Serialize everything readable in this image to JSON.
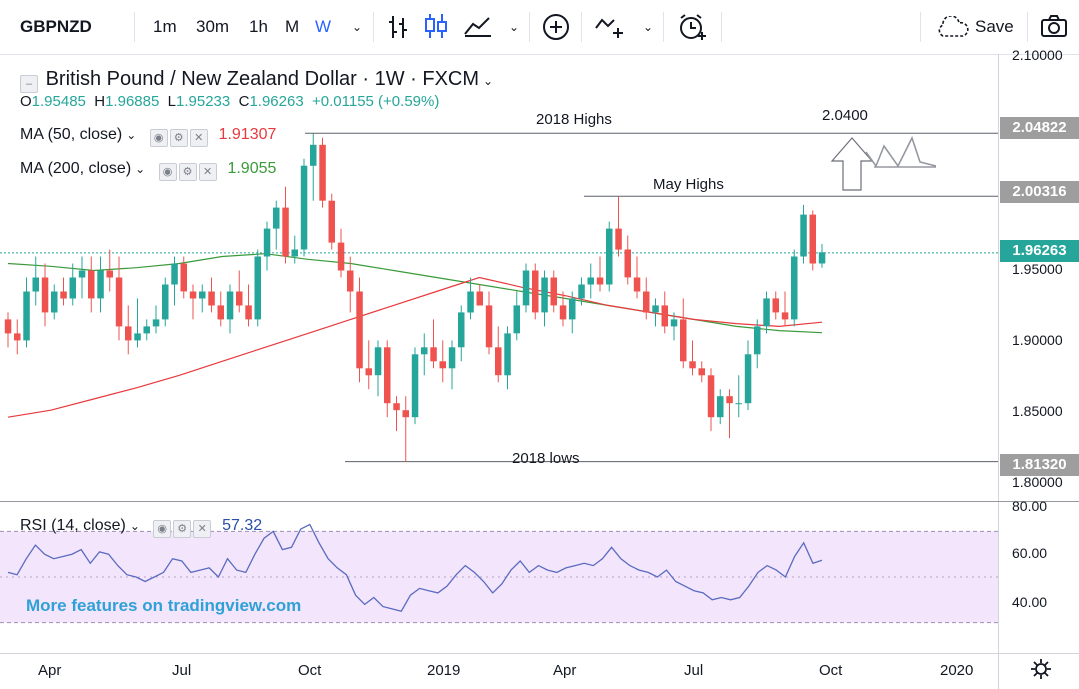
{
  "toolbar": {
    "symbol": "GBPNZD",
    "intervals": [
      "1m",
      "30m",
      "1h",
      "M",
      "W"
    ],
    "active_interval": "W",
    "save_label": "Save"
  },
  "header": {
    "title": "British Pound / New Zealand Dollar · 1W · FXCM",
    "ohlc": {
      "o_key": "O",
      "o": "1.95485",
      "h_key": "H",
      "h": "1.96885",
      "l_key": "L",
      "l": "1.95233",
      "c_key": "C",
      "c": "1.96263",
      "change": "+0.01155 (+0.59%)"
    }
  },
  "indicators": {
    "ma50": {
      "label": "MA (50, close)",
      "value": "1.91307",
      "color": "#e8393c"
    },
    "ma200": {
      "label": "MA (200, close)",
      "value": "1.9055",
      "color": "#3a9a3a"
    },
    "rsi": {
      "label": "RSI (14, close)",
      "value": "57.32",
      "color": "#5a6bbf"
    }
  },
  "annotations": {
    "highs_2018": "2018 Highs",
    "may_highs": "May Highs",
    "lows_2018": "2018 lows",
    "target": "2.0400"
  },
  "price_tags": {
    "highs_2018": "2.04822",
    "may_highs": "2.00316",
    "current": "1.96263",
    "lows_2018": "1.81320"
  },
  "watermark": "More features on tradingview.com",
  "colors": {
    "up": "#26a69a",
    "down": "#ef5350",
    "accent": "#2962ff",
    "rsi_band": "#f3e5fc"
  },
  "chart_data": {
    "type": "candlestick",
    "symbol": "GBPNZD",
    "timeframe": "1W",
    "price_axis_ticks": [
      "2.10000",
      "1.95000",
      "1.90000",
      "1.85000",
      "1.80000"
    ],
    "ylim": [
      1.795,
      2.105
    ],
    "x_ticks": [
      "Apr",
      "Jul",
      "Oct",
      "2019",
      "Apr",
      "Jul",
      "Oct",
      "2020"
    ],
    "rsi_axis_ticks": [
      "80.00",
      "60.00",
      "40.00"
    ],
    "rsi_ylim": [
      25,
      82
    ],
    "rsi_band": [
      30,
      70
    ],
    "candles": [
      [
        1.915,
        1.92,
        1.895,
        1.905
      ],
      [
        1.905,
        1.915,
        1.89,
        1.9
      ],
      [
        1.9,
        1.945,
        1.895,
        1.935
      ],
      [
        1.935,
        1.96,
        1.925,
        1.945
      ],
      [
        1.945,
        1.955,
        1.91,
        1.92
      ],
      [
        1.92,
        1.94,
        1.915,
        1.935
      ],
      [
        1.935,
        1.945,
        1.925,
        1.93
      ],
      [
        1.93,
        1.955,
        1.925,
        1.945
      ],
      [
        1.945,
        1.96,
        1.93,
        1.95
      ],
      [
        1.95,
        1.96,
        1.92,
        1.93
      ],
      [
        1.93,
        1.96,
        1.92,
        1.95
      ],
      [
        1.95,
        1.965,
        1.935,
        1.945
      ],
      [
        1.945,
        1.96,
        1.9,
        1.91
      ],
      [
        1.91,
        1.925,
        1.89,
        1.9
      ],
      [
        1.9,
        1.93,
        1.895,
        1.905
      ],
      [
        1.905,
        1.915,
        1.9,
        1.91
      ],
      [
        1.91,
        1.925,
        1.905,
        1.915
      ],
      [
        1.915,
        1.945,
        1.91,
        1.94
      ],
      [
        1.94,
        1.96,
        1.925,
        1.955
      ],
      [
        1.955,
        1.96,
        1.93,
        1.935
      ],
      [
        1.935,
        1.94,
        1.915,
        1.93
      ],
      [
        1.93,
        1.94,
        1.92,
        1.935
      ],
      [
        1.935,
        1.945,
        1.92,
        1.925
      ],
      [
        1.925,
        1.935,
        1.91,
        1.915
      ],
      [
        1.915,
        1.94,
        1.905,
        1.935
      ],
      [
        1.935,
        1.95,
        1.92,
        1.925
      ],
      [
        1.925,
        1.94,
        1.91,
        1.915
      ],
      [
        1.915,
        1.965,
        1.91,
        1.96
      ],
      [
        1.96,
        1.985,
        1.95,
        1.98
      ],
      [
        1.98,
        2.0,
        1.965,
        1.995
      ],
      [
        1.995,
        2.01,
        1.955,
        1.96
      ],
      [
        1.96,
        1.975,
        1.955,
        1.965
      ],
      [
        1.965,
        2.03,
        1.96,
        2.025
      ],
      [
        2.025,
        2.048,
        2.0,
        2.04
      ],
      [
        2.04,
        2.045,
        1.995,
        2.0
      ],
      [
        2.0,
        2.005,
        1.965,
        1.97
      ],
      [
        1.97,
        1.98,
        1.945,
        1.95
      ],
      [
        1.95,
        1.96,
        1.92,
        1.935
      ],
      [
        1.935,
        1.945,
        1.87,
        1.88
      ],
      [
        1.88,
        1.9,
        1.865,
        1.875
      ],
      [
        1.875,
        1.9,
        1.86,
        1.895
      ],
      [
        1.895,
        1.9,
        1.845,
        1.855
      ],
      [
        1.855,
        1.86,
        1.835,
        1.85
      ],
      [
        1.85,
        1.86,
        1.813,
        1.845
      ],
      [
        1.845,
        1.895,
        1.84,
        1.89
      ],
      [
        1.89,
        1.905,
        1.875,
        1.895
      ],
      [
        1.895,
        1.915,
        1.88,
        1.885
      ],
      [
        1.885,
        1.9,
        1.87,
        1.88
      ],
      [
        1.88,
        1.9,
        1.865,
        1.895
      ],
      [
        1.895,
        1.925,
        1.885,
        1.92
      ],
      [
        1.92,
        1.945,
        1.915,
        1.935
      ],
      [
        1.935,
        1.94,
        1.925,
        1.925
      ],
      [
        1.925,
        1.935,
        1.89,
        1.895
      ],
      [
        1.895,
        1.91,
        1.87,
        1.875
      ],
      [
        1.875,
        1.91,
        1.865,
        1.905
      ],
      [
        1.905,
        1.935,
        1.9,
        1.925
      ],
      [
        1.925,
        1.955,
        1.92,
        1.95
      ],
      [
        1.95,
        1.955,
        1.915,
        1.92
      ],
      [
        1.92,
        1.95,
        1.91,
        1.945
      ],
      [
        1.945,
        1.95,
        1.92,
        1.925
      ],
      [
        1.925,
        1.935,
        1.91,
        1.915
      ],
      [
        1.915,
        1.935,
        1.905,
        1.93
      ],
      [
        1.93,
        1.945,
        1.925,
        1.94
      ],
      [
        1.94,
        1.955,
        1.93,
        1.945
      ],
      [
        1.945,
        1.96,
        1.935,
        1.94
      ],
      [
        1.94,
        1.985,
        1.935,
        1.98
      ],
      [
        1.98,
        2.003,
        1.96,
        1.965
      ],
      [
        1.965,
        1.975,
        1.94,
        1.945
      ],
      [
        1.945,
        1.96,
        1.93,
        1.935
      ],
      [
        1.935,
        1.945,
        1.915,
        1.92
      ],
      [
        1.92,
        1.93,
        1.91,
        1.925
      ],
      [
        1.925,
        1.935,
        1.905,
        1.91
      ],
      [
        1.91,
        1.92,
        1.9,
        1.915
      ],
      [
        1.915,
        1.93,
        1.88,
        1.885
      ],
      [
        1.885,
        1.9,
        1.875,
        1.88
      ],
      [
        1.88,
        1.885,
        1.87,
        1.875
      ],
      [
        1.875,
        1.88,
        1.835,
        1.845
      ],
      [
        1.845,
        1.865,
        1.84,
        1.86
      ],
      [
        1.86,
        1.865,
        1.83,
        1.855
      ],
      [
        1.855,
        1.875,
        1.845,
        1.855
      ],
      [
        1.855,
        1.9,
        1.85,
        1.89
      ],
      [
        1.89,
        1.915,
        1.88,
        1.91
      ],
      [
        1.91,
        1.935,
        1.905,
        1.93
      ],
      [
        1.93,
        1.935,
        1.915,
        1.92
      ],
      [
        1.92,
        1.935,
        1.91,
        1.915
      ],
      [
        1.915,
        1.965,
        1.91,
        1.96
      ],
      [
        1.96,
        1.997,
        1.955,
        1.99
      ],
      [
        1.99,
        1.993,
        1.95,
        1.955
      ],
      [
        1.955,
        1.969,
        1.952,
        1.963
      ]
    ],
    "ma50": [
      1.845,
      1.85,
      1.858,
      1.866,
      1.875,
      1.885,
      1.895,
      1.905,
      1.915,
      1.925,
      1.935,
      1.945,
      1.938,
      1.932,
      1.925,
      1.92,
      1.915,
      1.912,
      1.91,
      1.913
    ],
    "ma200": [
      1.955,
      1.953,
      1.95,
      1.952,
      1.955,
      1.96,
      1.962,
      1.958,
      1.955,
      1.95,
      1.945,
      1.94,
      1.935,
      1.93,
      1.925,
      1.92,
      1.915,
      1.91,
      1.907,
      1.9055
    ],
    "rsi": [
      52,
      51,
      58,
      64,
      60,
      58,
      59,
      60,
      62,
      56,
      61,
      60,
      55,
      51,
      50,
      48,
      50,
      52,
      58,
      57,
      52,
      53,
      54,
      50,
      58,
      53,
      52,
      60,
      67,
      70,
      62,
      63,
      71,
      73,
      65,
      58,
      54,
      51,
      42,
      38,
      41,
      37,
      36,
      35,
      42,
      45,
      44,
      43,
      46,
      51,
      55,
      52,
      48,
      43,
      47,
      53,
      57,
      52,
      55,
      53,
      52,
      54,
      55,
      56,
      55,
      58,
      63,
      58,
      55,
      53,
      52,
      50,
      53,
      48,
      46,
      44,
      43,
      40,
      41,
      40,
      41,
      46,
      52,
      55,
      53,
      50,
      59,
      65,
      56,
      57.32
    ]
  }
}
